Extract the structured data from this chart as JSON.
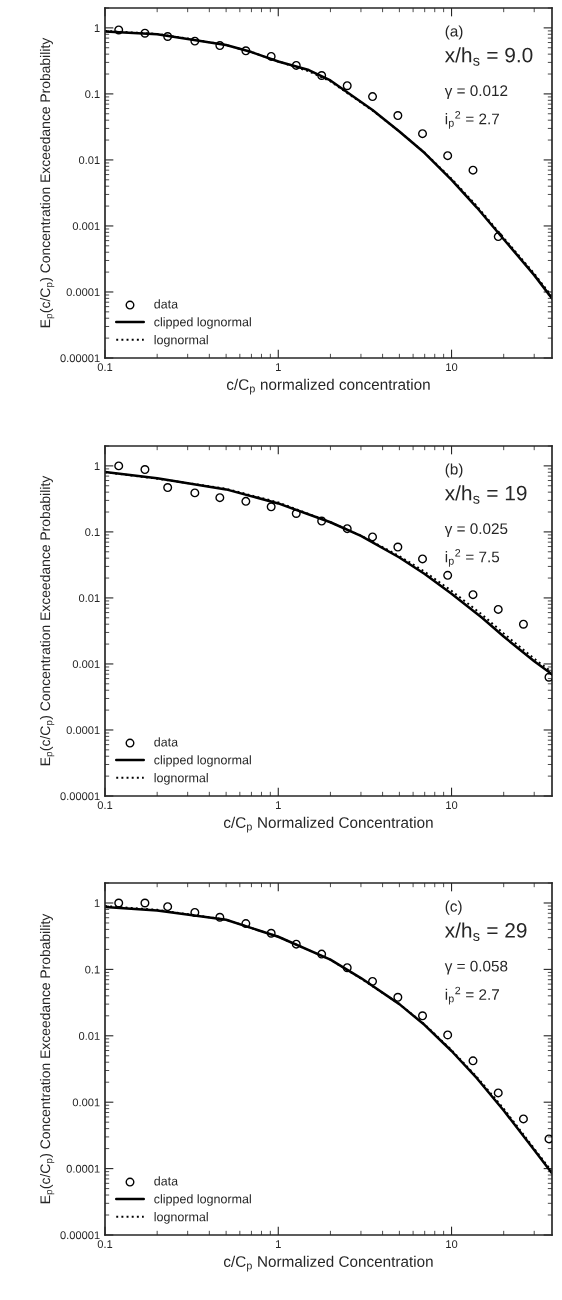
{
  "chart_data": [
    {
      "type": "line",
      "xlabel": "c/C$_{p}$ normalized concentration",
      "ylabel": "E$_{p}$(c/C$_{p}$) Concentration Exceedance Probability",
      "log": "xy",
      "legend": "bottom left",
      "grid": false,
      "xlim": [
        0.1,
        38
      ],
      "ylim": [
        1e-05,
        2
      ],
      "xticks": [
        0.1,
        1,
        10
      ],
      "yticks": [
        {
          "value": 1,
          "label": "1"
        },
        {
          "value": 0.1,
          "label": "0.1"
        },
        {
          "value": 0.01,
          "label": "0.01"
        },
        {
          "value": 0.001,
          "label": "0.001"
        },
        {
          "value": 0.0001,
          "label": "0.0001"
        },
        {
          "value": 1e-05,
          "label": "0.00001"
        }
      ],
      "annotations": [
        "(a)",
        "x/h$_{s}$ = 9.0",
        "γ = 0.012",
        "i$_{p}$$^{2}$ = 2.7"
      ],
      "series": [
        {
          "name": "data",
          "type": "scatter",
          "marker": "circle",
          "color": "#000000",
          "x": [
            0.12,
            0.17,
            0.23,
            0.33,
            0.46,
            0.65,
            0.91,
            1.27,
            1.78,
            2.5,
            3.5,
            4.9,
            6.8,
            9.5,
            13.3,
            18.6
          ],
          "values": [
            0.93,
            0.83,
            0.74,
            0.63,
            0.54,
            0.45,
            0.37,
            0.27,
            0.19,
            0.133,
            0.091,
            0.047,
            0.025,
            0.0116,
            0.007,
            0.00069
          ]
        },
        {
          "name": "clipped lognormal",
          "line_style": "solid",
          "color": "#000000",
          "x": [
            0.1,
            0.2,
            0.3,
            0.5,
            0.7,
            1,
            1.5,
            2,
            3.5,
            5,
            7,
            10,
            14,
            20,
            30,
            38
          ],
          "values": [
            0.88,
            0.8,
            0.68,
            0.55,
            0.43,
            0.31,
            0.23,
            0.16,
            0.057,
            0.027,
            0.0127,
            0.005,
            0.0019,
            0.00063,
            0.00018,
            8e-05
          ]
        },
        {
          "name": "lognormal",
          "line_style": "dotted",
          "color": "#000000",
          "x": [
            0.1,
            0.2,
            0.3,
            0.5,
            0.7,
            1,
            1.5,
            2,
            3.5,
            5,
            7,
            10,
            14,
            20,
            30,
            38
          ],
          "values": [
            0.9,
            0.81,
            0.69,
            0.55,
            0.43,
            0.31,
            0.22,
            0.155,
            0.056,
            0.027,
            0.0128,
            0.0052,
            0.002,
            0.00066,
            0.00019,
            8.5e-05
          ]
        }
      ]
    },
    {
      "type": "line",
      "xlabel": "c/C$_{p}$ Normalized Concentration",
      "ylabel": "E$_{p}$(c/C$_{p}$) Concentration Exceedance Probability",
      "log": "xy",
      "legend": "bottom left",
      "grid": false,
      "xlim": [
        0.1,
        38
      ],
      "ylim": [
        1e-05,
        2
      ],
      "xticks": [
        0.1,
        1,
        10
      ],
      "yticks": [
        {
          "value": 1,
          "label": "1"
        },
        {
          "value": 0.1,
          "label": "0.1"
        },
        {
          "value": 0.01,
          "label": "0.01"
        },
        {
          "value": 0.001,
          "label": "0.001"
        },
        {
          "value": 0.0001,
          "label": "0.0001"
        },
        {
          "value": 1e-05,
          "label": "0.00001"
        }
      ],
      "annotations": [
        "(b)",
        "x/h$_{s}$ = 19",
        "γ = 0.025",
        "i$_{p}$$^{2}$ = 7.5"
      ],
      "series": [
        {
          "name": "data",
          "type": "scatter",
          "marker": "circle",
          "color": "#000000",
          "x": [
            0.12,
            0.17,
            0.23,
            0.33,
            0.46,
            0.65,
            0.91,
            1.27,
            1.78,
            2.5,
            3.5,
            4.9,
            6.8,
            9.5,
            13.3,
            18.6,
            26,
            36.5
          ],
          "values": [
            1.0,
            0.88,
            0.47,
            0.39,
            0.33,
            0.29,
            0.24,
            0.19,
            0.146,
            0.112,
            0.084,
            0.059,
            0.039,
            0.022,
            0.0112,
            0.0067,
            0.004,
            0.00063
          ]
        },
        {
          "name": "clipped lognormal",
          "line_style": "solid",
          "color": "#000000",
          "x": [
            0.1,
            0.2,
            0.5,
            1,
            2,
            3,
            5,
            7,
            10,
            15,
            20,
            30,
            38
          ],
          "values": [
            0.81,
            0.65,
            0.44,
            0.27,
            0.14,
            0.087,
            0.041,
            0.023,
            0.0116,
            0.005,
            0.0026,
            0.0011,
            0.0007
          ]
        },
        {
          "name": "lognormal",
          "line_style": "dotted",
          "color": "#000000",
          "x": [
            0.1,
            0.2,
            0.5,
            1,
            2,
            3,
            5,
            7,
            10,
            15,
            20,
            30,
            38
          ],
          "values": [
            0.8,
            0.64,
            0.45,
            0.28,
            0.14,
            0.088,
            0.043,
            0.025,
            0.0128,
            0.0056,
            0.0029,
            0.0012,
            0.00075
          ]
        }
      ]
    },
    {
      "type": "line",
      "xlabel": "c/C$_{p}$ Normalized Concentration",
      "ylabel": "E$_{p}$(c/C$_{p}$) Concentration Exceedance Probability",
      "log": "xy",
      "legend": "bottom left",
      "grid": false,
      "xlim": [
        0.1,
        38
      ],
      "ylim": [
        1e-05,
        2
      ],
      "xticks": [
        0.1,
        1,
        10
      ],
      "yticks": [
        {
          "value": 1,
          "label": "1"
        },
        {
          "value": 0.1,
          "label": "0.1"
        },
        {
          "value": 0.01,
          "label": "0.01"
        },
        {
          "value": 0.001,
          "label": "0.001"
        },
        {
          "value": 0.0001,
          "label": "0.0001"
        },
        {
          "value": 1e-05,
          "label": "0.00001"
        }
      ],
      "annotations": [
        "(c)",
        "x/h$_{s}$ = 29",
        "γ = 0.058",
        "i$_{p}$$^{2}$ = 2.7"
      ],
      "series": [
        {
          "name": "data",
          "type": "scatter",
          "marker": "circle",
          "color": "#000000",
          "x": [
            0.12,
            0.17,
            0.23,
            0.33,
            0.46,
            0.65,
            0.91,
            1.27,
            1.78,
            2.5,
            3.5,
            4.9,
            6.8,
            9.5,
            13.3,
            18.6,
            26,
            36.5
          ],
          "values": [
            1.0,
            1.0,
            0.88,
            0.72,
            0.61,
            0.49,
            0.35,
            0.24,
            0.17,
            0.106,
            0.066,
            0.038,
            0.02,
            0.0103,
            0.0042,
            0.00138,
            0.00056,
            0.00028
          ]
        },
        {
          "name": "clipped lognormal",
          "line_style": "solid",
          "color": "#000000",
          "x": [
            0.1,
            0.2,
            0.5,
            1,
            2,
            3,
            5,
            7,
            10,
            14,
            20,
            30,
            38
          ],
          "values": [
            0.87,
            0.77,
            0.56,
            0.31,
            0.14,
            0.074,
            0.03,
            0.0145,
            0.0059,
            0.0023,
            0.00075,
            0.00019,
            8.5e-05
          ]
        },
        {
          "name": "lognormal",
          "line_style": "dotted",
          "color": "#000000",
          "x": [
            0.1,
            0.2,
            0.5,
            1,
            2,
            3,
            5,
            7,
            10,
            14,
            20,
            30,
            38
          ],
          "values": [
            0.9,
            0.79,
            0.56,
            0.31,
            0.14,
            0.073,
            0.03,
            0.0148,
            0.0061,
            0.0024,
            0.0008,
            0.0002,
            9e-05
          ]
        }
      ]
    }
  ]
}
